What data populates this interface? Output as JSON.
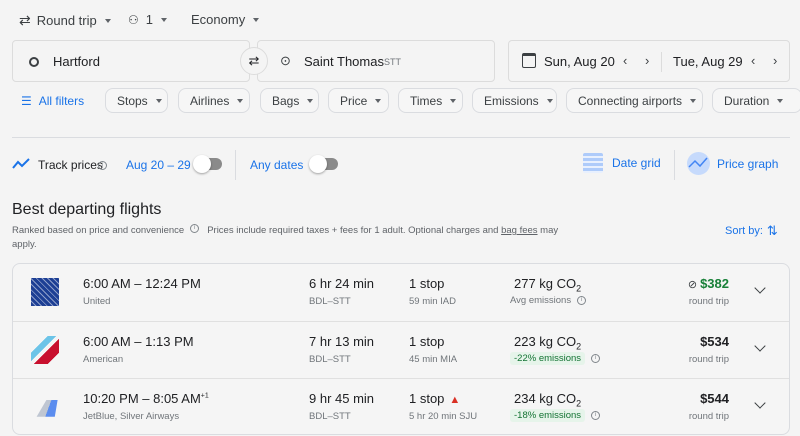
{
  "search": {
    "trip_type": "Round trip",
    "passengers": "1",
    "cabin": "Economy",
    "origin": "Hartford",
    "destination": "Saint Thomas",
    "destination_code": "STT",
    "depart_date": "Sun, Aug 20",
    "return_date": "Tue, Aug 29"
  },
  "filters": {
    "all_filters": "All filters",
    "chips": [
      "Stops",
      "Airlines",
      "Bags",
      "Price",
      "Times",
      "Emissions",
      "Connecting airports",
      "Duration"
    ]
  },
  "tracking": {
    "track_prices": "Track prices",
    "date_range": "Aug 20 – 29",
    "any_dates": "Any dates",
    "date_grid": "Date grid",
    "price_graph": "Price graph"
  },
  "results": {
    "title": "Best departing flights",
    "subtitle": "Ranked based on price and convenience",
    "note": "Prices include required taxes + fees for 1 adult. Optional charges and ",
    "bag_fees": "bag fees",
    "note_end": " may",
    "note_apply": "apply.",
    "sort_by": "Sort by:",
    "flights": [
      {
        "times": "6:00 AM – 12:24 PM",
        "day_offset": "",
        "airline": "United",
        "duration": "6 hr 24 min",
        "route": "BDL–STT",
        "stops": "1 stop",
        "layover": "59 min IAD",
        "co2": "277 kg CO",
        "co2_sub": "2",
        "emissions": "Avg emissions",
        "emissions_badge": false,
        "price": "$382",
        "price_color": "#188038",
        "price_note": "round trip",
        "no_bag_icon": true,
        "warning": false
      },
      {
        "times": "6:00 AM – 1:13 PM",
        "day_offset": "",
        "airline": "American",
        "duration": "7 hr 13 min",
        "route": "BDL–STT",
        "stops": "1 stop",
        "layover": "45 min MIA",
        "co2": "223 kg CO",
        "co2_sub": "2",
        "emissions": "-22% emissions",
        "emissions_badge": true,
        "price": "$534",
        "price_color": "#202124",
        "price_note": "round trip",
        "no_bag_icon": false,
        "warning": false
      },
      {
        "times": "10:20 PM – 8:05 AM",
        "day_offset": "+1",
        "airline": "JetBlue, Silver Airways",
        "duration": "9 hr 45 min",
        "route": "BDL–STT",
        "stops": "1 stop",
        "layover": "5 hr 20 min SJU",
        "co2": "234 kg CO",
        "co2_sub": "2",
        "emissions": "-18% emissions",
        "emissions_badge": true,
        "price": "$544",
        "price_color": "#202124",
        "price_note": "round trip",
        "no_bag_icon": false,
        "warning": true
      }
    ]
  },
  "colors": {
    "accent": "#1a73e8",
    "green": "#188038",
    "warning": "#d93025"
  }
}
